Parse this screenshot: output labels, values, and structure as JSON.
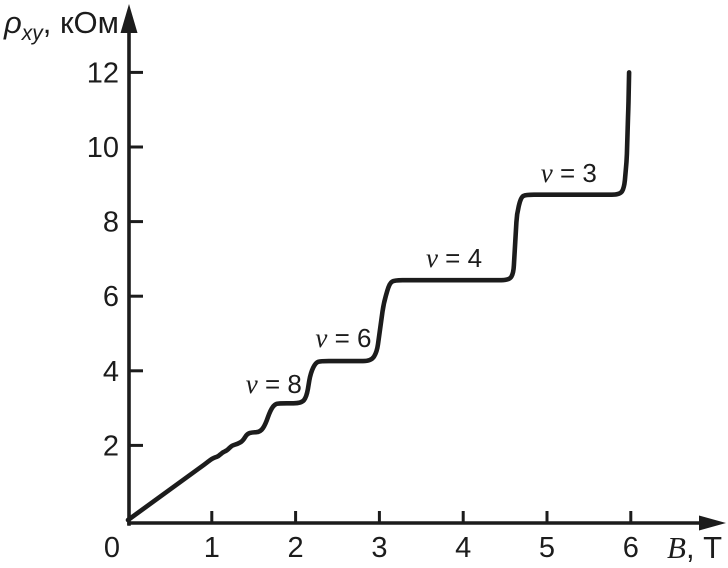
{
  "chart_data": {
    "type": "line",
    "title": "",
    "background": "#ffffff",
    "ink_color": "#1c1c1c",
    "grid": false,
    "xlabel": {
      "symbol": "B",
      "unit": ", Т"
    },
    "ylabel": {
      "symbol": "ρ",
      "subscript": "xy",
      "unit": ", кОм"
    },
    "x_ticks": [
      0,
      1,
      2,
      3,
      4,
      5,
      6
    ],
    "y_ticks": [
      2,
      4,
      6,
      8,
      10,
      12
    ],
    "xlim": [
      0,
      6.9
    ],
    "ylim": [
      0,
      13.7
    ],
    "series": [
      {
        "name": "rho_xy(B)",
        "points": [
          [
            0,
            0
          ],
          [
            0.92,
            1.5
          ],
          [
            1.0,
            1.64
          ],
          [
            1.04,
            1.68
          ],
          [
            1.08,
            1.71
          ],
          [
            1.13,
            1.82
          ],
          [
            1.18,
            1.86
          ],
          [
            1.24,
            2.0
          ],
          [
            1.31,
            2.04
          ],
          [
            1.37,
            2.12
          ],
          [
            1.42,
            2.31
          ],
          [
            1.48,
            2.35
          ],
          [
            1.58,
            2.36
          ],
          [
            1.64,
            2.56
          ],
          [
            1.7,
            2.95
          ],
          [
            1.75,
            3.1
          ],
          [
            1.8,
            3.13
          ],
          [
            2.07,
            3.13
          ],
          [
            2.13,
            3.3
          ],
          [
            2.18,
            3.95
          ],
          [
            2.24,
            4.22
          ],
          [
            2.3,
            4.26
          ],
          [
            2.9,
            4.26
          ],
          [
            2.97,
            4.5
          ],
          [
            3.05,
            5.8
          ],
          [
            3.12,
            6.35
          ],
          [
            3.18,
            6.43
          ],
          [
            4.55,
            6.43
          ],
          [
            4.6,
            6.62
          ],
          [
            4.64,
            8.2
          ],
          [
            4.69,
            8.66
          ],
          [
            4.75,
            8.72
          ],
          [
            5.87,
            8.72
          ],
          [
            5.92,
            8.9
          ],
          [
            5.95,
            9.6
          ],
          [
            5.97,
            11.0
          ],
          [
            5.98,
            12.0
          ]
        ]
      }
    ],
    "annotations": [
      {
        "nu": "ν",
        "eq": " = 8",
        "filling_factor": 8,
        "plateau_rho_kohm": 3.1,
        "x": 1.74,
        "y": 3.4
      },
      {
        "nu": "ν",
        "eq": " = 6",
        "filling_factor": 6,
        "plateau_rho_kohm": 4.3,
        "x": 2.57,
        "y": 4.64
      },
      {
        "nu": "ν",
        "eq": " = 4",
        "filling_factor": 4,
        "plateau_rho_kohm": 6.4,
        "x": 3.89,
        "y": 6.78
      },
      {
        "nu": "ν",
        "eq": " = 3",
        "filling_factor": 3,
        "plateau_rho_kohm": 8.7,
        "x": 5.26,
        "y": 9.06
      }
    ]
  }
}
